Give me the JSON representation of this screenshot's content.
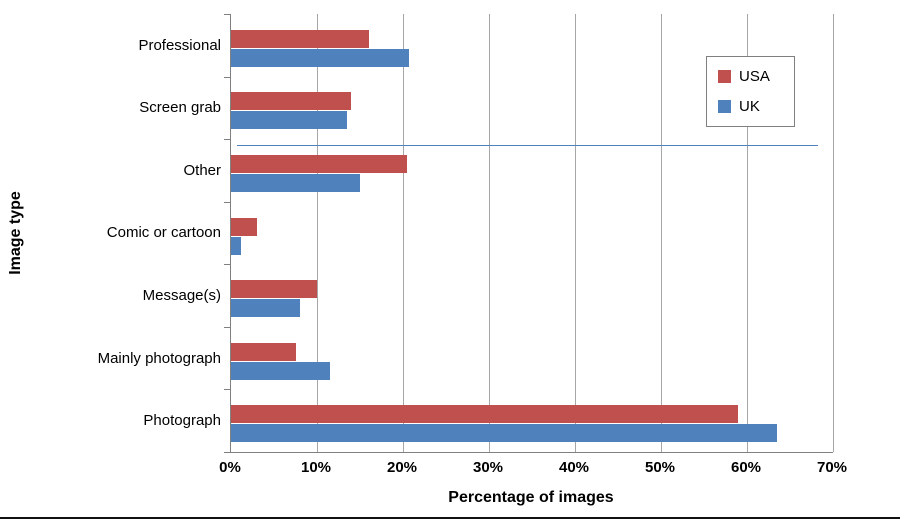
{
  "figure": {
    "background": "#FFFFFF",
    "axis_color": "#808080",
    "gridline_color": "#A6A6A6"
  },
  "chart_data": {
    "type": "bar",
    "orientation": "horizontal",
    "title": "",
    "xlabel": "Percentage of images",
    "ylabel": "Image type",
    "categories": [
      "Professional",
      "Screen grab",
      "Other",
      "Comic or cartoon",
      "Message(s)",
      "Mainly photograph",
      "Photograph"
    ],
    "series": [
      {
        "name": "USA",
        "color": "#C0504D",
        "values": [
          16,
          14,
          20.5,
          3,
          10,
          7.5,
          59
        ]
      },
      {
        "name": "UK",
        "color": "#4F81BD",
        "values": [
          20.7,
          13.5,
          15,
          1.2,
          8,
          11.5,
          63.5
        ]
      }
    ],
    "series_order_top_to_bottom": [
      "USA",
      "UK"
    ],
    "xlim": [
      0,
      70
    ],
    "xticks": [
      "0%",
      "10%",
      "20%",
      "30%",
      "40%",
      "50%",
      "60%",
      "70%"
    ],
    "xtick_values": [
      0,
      10,
      20,
      30,
      40,
      50,
      60,
      70
    ],
    "grid": "vertical-gridlines",
    "legend": {
      "position": "inside-top-right",
      "entries": [
        "USA",
        "UK"
      ]
    },
    "annotations": [
      {
        "type": "stray-horizontal-line",
        "color": "#4F81BD",
        "y_frac": 0.3,
        "x1_frac": 0.01,
        "x2_frac": 0.975,
        "description": "thin blue horizontal line between Screen grab and Other groups extending to about 68%"
      }
    ]
  }
}
